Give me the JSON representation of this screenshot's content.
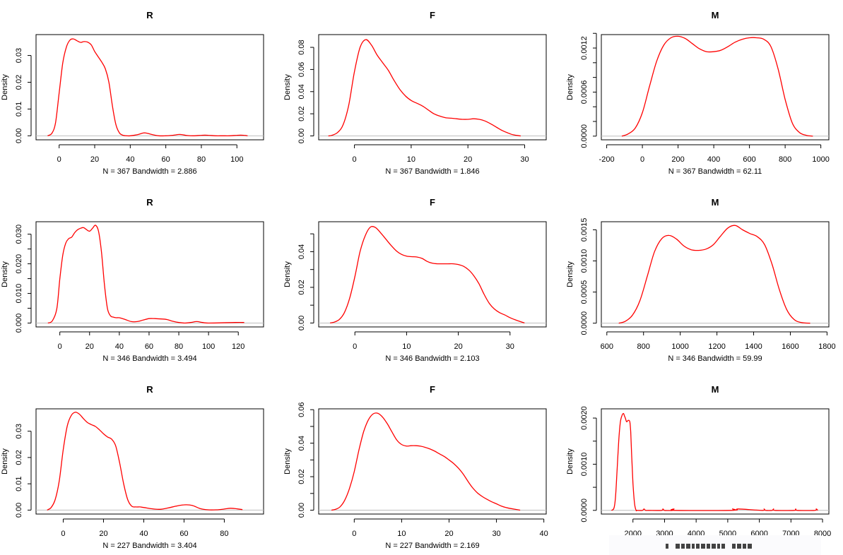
{
  "chart_data": [
    {
      "type": "line",
      "title": "R",
      "ylabel": "Density",
      "xlabel": "N = 367   Bandwidth = 2.886",
      "xlim": [
        -13,
        115
      ],
      "ylim": [
        -0.0015,
        0.0378
      ],
      "xticks": [
        0,
        20,
        40,
        60,
        80,
        100
      ],
      "yticks": [
        0.0,
        0.01,
        0.02,
        0.03
      ],
      "ytick_labels": [
        "0.00",
        "0.01",
        "0.02",
        "0.03"
      ],
      "series": [
        {
          "name": "density",
          "color": "#ff0000",
          "x": [
            -6.5,
            -4,
            -2,
            0,
            2,
            4,
            6,
            8,
            10,
            12,
            14,
            16,
            18,
            20,
            22,
            24,
            26,
            28,
            30,
            32,
            34,
            36,
            38,
            40,
            44,
            48,
            52,
            56,
            60,
            64,
            68,
            72,
            76,
            80,
            84,
            88,
            92,
            96,
            100,
            104,
            106
          ],
          "y": [
            0,
            0.001,
            0.005,
            0.016,
            0.027,
            0.033,
            0.0357,
            0.0362,
            0.0355,
            0.0349,
            0.0352,
            0.035,
            0.034,
            0.0315,
            0.0295,
            0.0275,
            0.025,
            0.02,
            0.011,
            0.004,
            0.001,
            0.0002,
            0,
            0,
            0.0004,
            0.0011,
            0.0005,
            0,
            0,
            0.0002,
            0.0005,
            0.0001,
            0,
            0.0002,
            0.0002,
            0,
            0,
            0,
            0.0002,
            0.0002,
            0
          ]
        }
      ],
      "baseline": {
        "y": 0,
        "color": "#bebebe"
      }
    },
    {
      "type": "line",
      "title": "F",
      "ylabel": "Density",
      "xlabel": "N = 367   Bandwidth = 1.846",
      "xlim": [
        -6.3,
        33.8
      ],
      "ylim": [
        -0.0035,
        0.0915
      ],
      "xticks": [
        0,
        10,
        20,
        30
      ],
      "yticks": [
        0.0,
        0.02,
        0.04,
        0.06,
        0.08
      ],
      "ytick_labels": [
        "0.00",
        "0.02",
        "0.04",
        "0.06",
        "0.08"
      ],
      "series": [
        {
          "name": "density",
          "color": "#ff0000",
          "x": [
            -4.6,
            -4,
            -3,
            -2,
            -1,
            0,
            1,
            2,
            3,
            4,
            5,
            6,
            7,
            8,
            9,
            10,
            11,
            12,
            13,
            14,
            15,
            16,
            17,
            18,
            19,
            20,
            21,
            22,
            23,
            24,
            25,
            26,
            27,
            28,
            29.3
          ],
          "y": [
            0,
            0.0005,
            0.003,
            0.01,
            0.028,
            0.058,
            0.08,
            0.087,
            0.082,
            0.073,
            0.066,
            0.059,
            0.05,
            0.042,
            0.036,
            0.032,
            0.0295,
            0.027,
            0.0235,
            0.02,
            0.018,
            0.0165,
            0.016,
            0.0155,
            0.015,
            0.015,
            0.0155,
            0.015,
            0.0135,
            0.011,
            0.008,
            0.005,
            0.0028,
            0.001,
            0
          ]
        }
      ],
      "baseline": {
        "y": 0,
        "color": "#bebebe"
      }
    },
    {
      "type": "line",
      "title": "M",
      "ylabel": "Density",
      "xlabel": "N = 367   Bandwidth = 62.11",
      "xlim": [
        -230,
        1045
      ],
      "ylim": [
        -5e-05,
        0.001383
      ],
      "xticks": [
        -200,
        0,
        200,
        400,
        600,
        800,
        1000
      ],
      "yticks": [
        0.0,
        0.0002,
        0.0004,
        0.0006,
        0.0008,
        0.001,
        0.0012,
        0.0014
      ],
      "ytick_labels": [
        "0.0000",
        "",
        "",
        "0.0006",
        "",
        "",
        "0.0012",
        ""
      ],
      "series": [
        {
          "name": "density",
          "color": "#ff0000",
          "x": [
            -115,
            -80,
            -40,
            0,
            40,
            80,
            120,
            160,
            200,
            240,
            280,
            320,
            360,
            400,
            440,
            480,
            520,
            560,
            600,
            640,
            680,
            720,
            760,
            800,
            840,
            880,
            920,
            955
          ],
          "y": [
            0,
            3e-05,
            0.00011,
            0.00032,
            0.00068,
            0.00102,
            0.00124,
            0.00134,
            0.00136,
            0.00133,
            0.00126,
            0.00119,
            0.00115,
            0.00115,
            0.00117,
            0.00122,
            0.00128,
            0.00132,
            0.00134,
            0.00134,
            0.00132,
            0.00122,
            0.00092,
            0.0005,
            0.00018,
            5e-05,
            1e-05,
            0
          ]
        }
      ],
      "baseline": {
        "y": 0,
        "color": "#bebebe"
      }
    },
    {
      "type": "line",
      "title": "R",
      "ylabel": "Density",
      "xlabel": "N = 346   Bandwidth = 3.494",
      "xlim": [
        -16,
        137
      ],
      "ylim": [
        -0.0013,
        0.0342
      ],
      "xticks": [
        0,
        20,
        40,
        60,
        80,
        100,
        120
      ],
      "yticks": [
        0.0,
        0.005,
        0.01,
        0.015,
        0.02,
        0.025,
        0.03
      ],
      "ytick_labels": [
        "0.000",
        "",
        "0.010",
        "",
        "0.020",
        "",
        "0.030"
      ],
      "series": [
        {
          "name": "density",
          "color": "#ff0000",
          "x": [
            -8,
            -5,
            -2,
            0,
            2,
            4,
            6,
            8,
            10,
            12,
            14,
            16,
            18,
            20,
            22,
            24,
            26,
            28,
            30,
            32,
            34,
            36,
            38,
            40,
            44,
            48,
            52,
            56,
            60,
            64,
            68,
            72,
            76,
            80,
            84,
            88,
            92,
            96,
            100,
            118,
            124
          ],
          "y": [
            0,
            0.0008,
            0.005,
            0.015,
            0.023,
            0.027,
            0.0285,
            0.029,
            0.0305,
            0.0315,
            0.032,
            0.0322,
            0.0315,
            0.031,
            0.032,
            0.033,
            0.031,
            0.024,
            0.013,
            0.005,
            0.0025,
            0.002,
            0.0018,
            0.0018,
            0.0012,
            0.0005,
            0.0005,
            0.001,
            0.0015,
            0.0015,
            0.0014,
            0.0012,
            0.0006,
            0.0002,
            0,
            0.0002,
            0.0005,
            0.0002,
            0,
            0.0002,
            0.0002
          ]
        }
      ],
      "baseline": {
        "y": 0,
        "color": "#bebebe"
      }
    },
    {
      "type": "line",
      "title": "F",
      "ylabel": "Density",
      "xlabel": "N = 346   Bandwidth = 2.103",
      "xlim": [
        -7,
        37
      ],
      "ylim": [
        -0.0022,
        0.0568
      ],
      "xticks": [
        0,
        10,
        20,
        30
      ],
      "yticks": [
        0.0,
        0.01,
        0.02,
        0.03,
        0.04,
        0.05
      ],
      "ytick_labels": [
        "0.00",
        "",
        "0.02",
        "",
        "0.04",
        ""
      ],
      "series": [
        {
          "name": "density",
          "color": "#ff0000",
          "x": [
            -4.8,
            -4,
            -3,
            -2,
            -1,
            0,
            1,
            2,
            3,
            4,
            5,
            6,
            7,
            8,
            9,
            10,
            11,
            12,
            13,
            14,
            15,
            16,
            17,
            18,
            19,
            20,
            21,
            22,
            23,
            24,
            25,
            26,
            27,
            28,
            29,
            30,
            31,
            32.8
          ],
          "y": [
            0,
            0.0005,
            0.002,
            0.006,
            0.014,
            0.026,
            0.04,
            0.049,
            0.0538,
            0.0535,
            0.0505,
            0.047,
            0.0435,
            0.0405,
            0.0385,
            0.0375,
            0.0372,
            0.037,
            0.0362,
            0.0345,
            0.0335,
            0.0332,
            0.0332,
            0.0332,
            0.0332,
            0.0328,
            0.0318,
            0.0298,
            0.0265,
            0.022,
            0.016,
            0.011,
            0.0078,
            0.0058,
            0.0045,
            0.003,
            0.0018,
            0
          ]
        }
      ],
      "baseline": {
        "y": 0,
        "color": "#bebebe"
      }
    },
    {
      "type": "line",
      "title": "M",
      "ylabel": "Density",
      "xlabel": "N = 346   Bandwidth = 59.99",
      "xlim": [
        570,
        1810
      ],
      "ylim": [
        -6e-05,
        0.00163
      ],
      "xticks": [
        600,
        800,
        1000,
        1200,
        1400,
        1600,
        1800
      ],
      "yticks": [
        0.0,
        0.0005,
        0.001,
        0.0015
      ],
      "ytick_labels": [
        "0.0000",
        "0.0005",
        "0.0010",
        "0.0015"
      ],
      "series": [
        {
          "name": "density",
          "color": "#ff0000",
          "x": [
            665,
            700,
            740,
            780,
            820,
            860,
            900,
            940,
            980,
            1020,
            1060,
            1100,
            1140,
            1180,
            1220,
            1260,
            1300,
            1340,
            1380,
            1420,
            1460,
            1500,
            1540,
            1580,
            1620,
            1660,
            1708
          ],
          "y": [
            0,
            3e-05,
            0.00013,
            0.00036,
            0.00075,
            0.00115,
            0.00136,
            0.00141,
            0.00135,
            0.00124,
            0.00118,
            0.00117,
            0.00119,
            0.00126,
            0.0014,
            0.00153,
            0.00157,
            0.0015,
            0.00144,
            0.00139,
            0.00126,
            0.00095,
            0.00054,
            0.00022,
            6e-05,
            1e-05,
            0
          ]
        }
      ],
      "baseline": {
        "y": 0,
        "color": "#bebebe"
      }
    },
    {
      "type": "line",
      "title": "R",
      "ylabel": "Density",
      "xlabel": "N = 227   Bandwidth = 3.404",
      "xlim": [
        -13.5,
        99.5
      ],
      "ylim": [
        -0.0015,
        0.0385
      ],
      "xticks": [
        0,
        20,
        40,
        60,
        80
      ],
      "yticks": [
        0.0,
        0.01,
        0.02,
        0.03
      ],
      "ytick_labels": [
        "0.00",
        "0.01",
        "0.02",
        "0.03"
      ],
      "series": [
        {
          "name": "density",
          "color": "#ff0000",
          "x": [
            -8,
            -6,
            -4,
            -2,
            0,
            2,
            4,
            6,
            8,
            10,
            12,
            14,
            16,
            18,
            20,
            22,
            24,
            26,
            28,
            30,
            32,
            34,
            36,
            38,
            40,
            44,
            48,
            52,
            56,
            60,
            64,
            68,
            72,
            76,
            80,
            83,
            86,
            89
          ],
          "y": [
            0,
            0.001,
            0.004,
            0.011,
            0.023,
            0.032,
            0.036,
            0.0372,
            0.0365,
            0.0348,
            0.0333,
            0.0325,
            0.0318,
            0.0305,
            0.029,
            0.0278,
            0.027,
            0.0245,
            0.018,
            0.01,
            0.004,
            0.0015,
            0.0012,
            0.0012,
            0.001,
            0.0005,
            0.0003,
            0.0008,
            0.0015,
            0.002,
            0.0018,
            0.0006,
            0.0001,
            0.0001,
            0.0004,
            0.0007,
            0.0005,
            0.0002
          ]
        }
      ],
      "baseline": {
        "y": 0,
        "color": "#bebebe"
      }
    },
    {
      "type": "line",
      "title": "F",
      "ylabel": "Density",
      "xlabel": "N = 227   Bandwidth = 2.169",
      "xlim": [
        -7.5,
        40.5
      ],
      "ylim": [
        -0.0023,
        0.0605
      ],
      "xticks": [
        0,
        10,
        20,
        30,
        40
      ],
      "yticks": [
        0.0,
        0.01,
        0.02,
        0.03,
        0.04,
        0.05,
        0.06
      ],
      "ytick_labels": [
        "0.00",
        "",
        "0.02",
        "",
        "0.04",
        "",
        "0.06"
      ],
      "series": [
        {
          "name": "density",
          "color": "#ff0000",
          "x": [
            -4.8,
            -4,
            -3,
            -2,
            -1,
            0,
            1,
            2,
            3,
            4,
            5,
            6,
            7,
            8,
            9,
            10,
            11,
            12,
            13,
            14,
            15,
            16,
            17,
            18,
            19,
            20,
            21,
            22,
            23,
            24,
            25,
            26,
            27,
            28,
            29,
            30,
            31,
            32,
            33,
            35
          ],
          "y": [
            0,
            0.0005,
            0.002,
            0.006,
            0.013,
            0.023,
            0.036,
            0.047,
            0.054,
            0.0575,
            0.0578,
            0.0555,
            0.0515,
            0.0465,
            0.0418,
            0.0392,
            0.0383,
            0.0385,
            0.0385,
            0.0382,
            0.0375,
            0.0365,
            0.0352,
            0.0336,
            0.032,
            0.03,
            0.0278,
            0.025,
            0.0215,
            0.0172,
            0.0133,
            0.0103,
            0.0082,
            0.0065,
            0.005,
            0.0038,
            0.0025,
            0.0016,
            0.001,
            0
          ]
        }
      ],
      "baseline": {
        "y": 0,
        "color": "#bebebe"
      }
    },
    {
      "type": "line",
      "title": "M",
      "ylabel": "Density",
      "xlabel": "",
      "xlabel_note": "obscured in screenshot",
      "xlim": [
        1000,
        8200
      ],
      "ylim": [
        -8e-05,
        0.0022
      ],
      "xticks": [
        2000,
        3000,
        4000,
        5000,
        6000,
        7000,
        8000
      ],
      "yticks": [
        0.0,
        0.0005,
        0.001,
        0.0015,
        0.002
      ],
      "ytick_labels": [
        "0.0000",
        "",
        "0.0010",
        "",
        "0.0020"
      ],
      "series": [
        {
          "name": "density",
          "color": "#ff0000",
          "x": [
            1320,
            1400,
            1450,
            1500,
            1550,
            1600,
            1650,
            1700,
            1730,
            1760,
            1800,
            1850,
            1900,
            1930,
            1960,
            2000,
            2050,
            2100,
            2130,
            2300,
            2350,
            2400,
            2500,
            2900,
            2950,
            3000,
            3250,
            3300,
            3350,
            5100,
            5150,
            5200,
            5300,
            5350,
            6100,
            6150,
            6200,
            6400,
            6450,
            6500,
            7100,
            7150,
            7200,
            7750,
            7800,
            7850
          ],
          "y": [
            0,
            5e-05,
            0.0003,
            0.0009,
            0.0015,
            0.0019,
            0.00205,
            0.0021,
            0.00205,
            0.002,
            0.00192,
            0.00195,
            0.00192,
            0.0017,
            0.0012,
            0.0006,
            0.00015,
            0,
            0,
            0,
            3e-05,
            0,
            0,
            0,
            3e-05,
            0,
            0,
            3e-05,
            0,
            0,
            3e-05,
            1e-05,
            1e-05,
            3e-05,
            0,
            3e-05,
            0,
            0,
            3e-05,
            0,
            0,
            3e-05,
            0,
            0,
            3e-05,
            0
          ]
        }
      ],
      "baseline": {
        "y": 0,
        "color": "#bebebe"
      }
    }
  ],
  "colors": {
    "curve": "#ff0000",
    "baseline": "#bebebe",
    "axis": "#000000",
    "background": "#ffffff"
  }
}
